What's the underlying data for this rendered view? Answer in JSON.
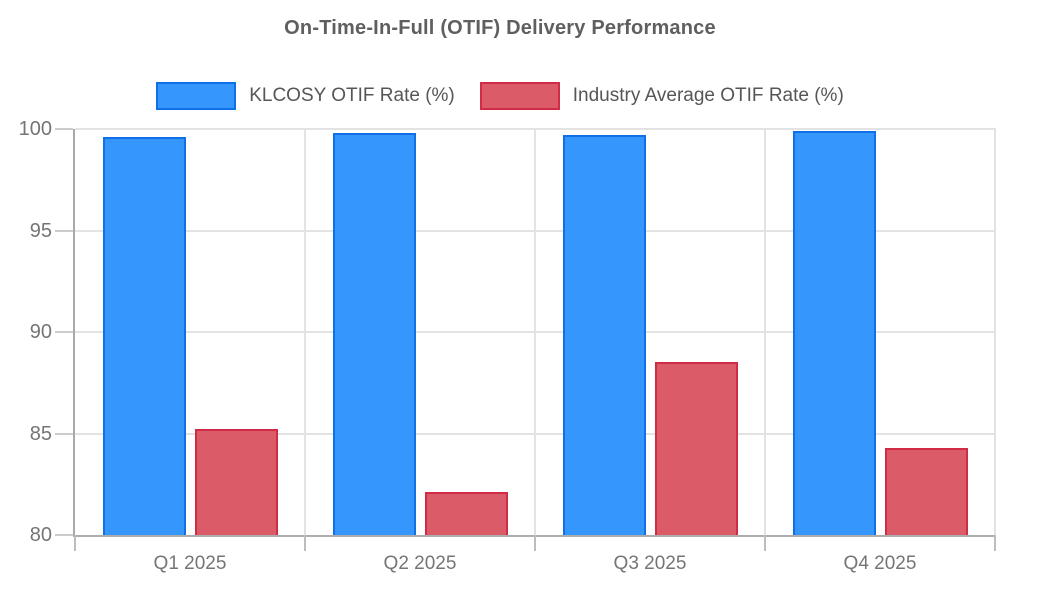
{
  "chart_data": {
    "type": "bar",
    "title": "On-Time-In-Full (OTIF) Delivery Performance",
    "categories": [
      "Q1 2025",
      "Q2 2025",
      "Q3 2025",
      "Q4 2025"
    ],
    "series": [
      {
        "name": "KLCOSY OTIF Rate (%)",
        "values": [
          99.6,
          99.8,
          99.7,
          99.9
        ],
        "fill_color": "#3596fc",
        "border_color": "#1170e8"
      },
      {
        "name": "Industry Average OTIF Rate (%)",
        "values": [
          85.2,
          82.1,
          88.5,
          84.3
        ],
        "fill_color": "#dc5b69",
        "border_color": "#d12c47"
      }
    ],
    "xlabel": "",
    "ylabel": "",
    "ylim": [
      80,
      100
    ],
    "yticks": [
      80,
      85,
      90,
      95,
      100
    ],
    "grid": true,
    "legend_position": "top"
  },
  "colors": {
    "background": "#ffffff",
    "title_text": "#5f5f5f",
    "legend_text": "#565656",
    "axis_label_text": "#757575",
    "gridline": "#e3e3e3",
    "axis_line": "#adadad",
    "tick_mark": "#cccccc"
  }
}
